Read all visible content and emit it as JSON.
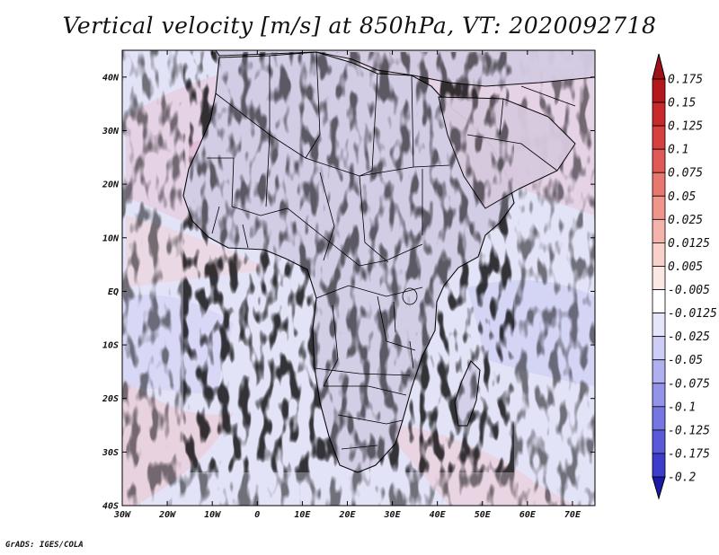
{
  "title": "Vertical velocity [m/s] at 850hPa, VT: 2020092718",
  "credit": "GrADS: IGES/COLA",
  "map": {
    "variable": "Vertical velocity",
    "units": "m/s",
    "level": "850hPa",
    "valid_time": "2020092718",
    "lon_range": [
      -30,
      75
    ],
    "lat_range": [
      -40,
      45
    ],
    "lon_ticks": [
      {
        "value": -30,
        "label": "30W"
      },
      {
        "value": -20,
        "label": "20W"
      },
      {
        "value": -10,
        "label": "10W"
      },
      {
        "value": 0,
        "label": "0"
      },
      {
        "value": 10,
        "label": "10E"
      },
      {
        "value": 20,
        "label": "20E"
      },
      {
        "value": 30,
        "label": "30E"
      },
      {
        "value": 40,
        "label": "40E"
      },
      {
        "value": 50,
        "label": "50E"
      },
      {
        "value": 60,
        "label": "60E"
      },
      {
        "value": 70,
        "label": "70E"
      }
    ],
    "lat_ticks": [
      {
        "value": 40,
        "label": "40N"
      },
      {
        "value": 30,
        "label": "30N"
      },
      {
        "value": 20,
        "label": "20N"
      },
      {
        "value": 10,
        "label": "10N"
      },
      {
        "value": 0,
        "label": "EQ"
      },
      {
        "value": -10,
        "label": "10S"
      },
      {
        "value": -20,
        "label": "20S"
      },
      {
        "value": -30,
        "label": "30S"
      },
      {
        "value": -40,
        "label": "40S"
      }
    ]
  },
  "colorbar": {
    "levels": [
      {
        "label": "0.175",
        "color": "#b5181c"
      },
      {
        "label": "0.15",
        "color": "#c82a2c"
      },
      {
        "label": "0.125",
        "color": "#d6403f"
      },
      {
        "label": "0.1",
        "color": "#e05a57"
      },
      {
        "label": "0.075",
        "color": "#e8776f"
      },
      {
        "label": "0.05",
        "color": "#ef958c"
      },
      {
        "label": "0.025",
        "color": "#f4b3ab"
      },
      {
        "label": "0.0125",
        "color": "#f8d1cb"
      },
      {
        "label": "0.005",
        "color": "#fbe7e3"
      },
      {
        "label": "-0.005",
        "color": "#ffffff"
      },
      {
        "label": "-0.0125",
        "color": "#e6e6fb"
      },
      {
        "label": "-0.025",
        "color": "#cdcdf6"
      },
      {
        "label": "-0.05",
        "color": "#b0b0f0"
      },
      {
        "label": "-0.075",
        "color": "#9393ea"
      },
      {
        "label": "-0.1",
        "color": "#7676e2"
      },
      {
        "label": "-0.125",
        "color": "#5a5ad8"
      },
      {
        "label": "-0.175",
        "color": "#3d3dcb"
      },
      {
        "label": "-0.2",
        "color": "#2424b8"
      }
    ],
    "top_color": "#a01018",
    "bottom_color": "#1a1aa8"
  }
}
